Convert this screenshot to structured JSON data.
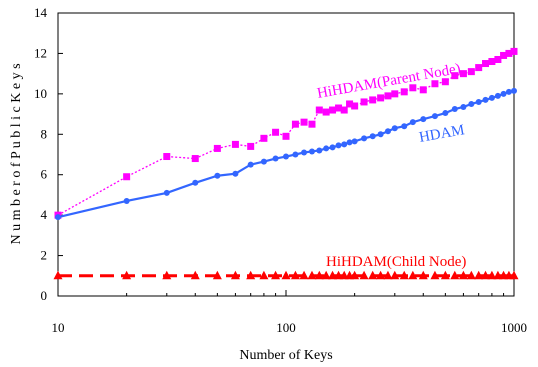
{
  "chart_data": {
    "type": "line",
    "xlabel": "Number of Keys",
    "ylabel": "N u m b e r  o f  P u b l i c  K e y s",
    "x_scale": "log",
    "xlim": [
      10,
      1000
    ],
    "ylim": [
      0,
      14
    ],
    "x_ticks": [
      "10",
      "100",
      "1000"
    ],
    "y_ticks": [
      "0",
      "2",
      "4",
      "6",
      "8",
      "10",
      "12",
      "14"
    ],
    "grid": false,
    "series": [
      {
        "name": "HiHDAM(Parent Node)",
        "color": "#FF00FF",
        "marker": "square",
        "line": "dotted",
        "points": [
          [
            10,
            4.0
          ],
          [
            20,
            5.9
          ],
          [
            30,
            6.9
          ],
          [
            40,
            6.8
          ],
          [
            50,
            7.3
          ],
          [
            60,
            7.5
          ],
          [
            70,
            7.4
          ],
          [
            80,
            7.8
          ],
          [
            90,
            8.1
          ],
          [
            100,
            7.9
          ],
          [
            110,
            8.5
          ],
          [
            120,
            8.6
          ],
          [
            130,
            8.5
          ],
          [
            140,
            9.2
          ],
          [
            150,
            9.1
          ],
          [
            160,
            9.2
          ],
          [
            170,
            9.3
          ],
          [
            180,
            9.2
          ],
          [
            190,
            9.5
          ],
          [
            200,
            9.4
          ],
          [
            220,
            9.6
          ],
          [
            240,
            9.7
          ],
          [
            260,
            9.8
          ],
          [
            280,
            9.9
          ],
          [
            300,
            10.0
          ],
          [
            330,
            10.1
          ],
          [
            360,
            10.3
          ],
          [
            400,
            10.2
          ],
          [
            450,
            10.5
          ],
          [
            500,
            10.6
          ],
          [
            550,
            10.9
          ],
          [
            600,
            11.0
          ],
          [
            650,
            11.1
          ],
          [
            700,
            11.3
          ],
          [
            750,
            11.5
          ],
          [
            800,
            11.6
          ],
          [
            850,
            11.7
          ],
          [
            900,
            11.9
          ],
          [
            950,
            12.0
          ],
          [
            1000,
            12.1
          ]
        ]
      },
      {
        "name": "HDAM",
        "color": "#3366FF",
        "marker": "circle",
        "line": "solid",
        "points": [
          [
            10,
            3.9
          ],
          [
            20,
            4.7
          ],
          [
            30,
            5.1
          ],
          [
            40,
            5.6
          ],
          [
            50,
            5.95
          ],
          [
            60,
            6.05
          ],
          [
            70,
            6.5
          ],
          [
            80,
            6.65
          ],
          [
            90,
            6.8
          ],
          [
            100,
            6.9
          ],
          [
            110,
            7.0
          ],
          [
            120,
            7.1
          ],
          [
            130,
            7.15
          ],
          [
            140,
            7.2
          ],
          [
            150,
            7.3
          ],
          [
            160,
            7.35
          ],
          [
            170,
            7.45
          ],
          [
            180,
            7.5
          ],
          [
            190,
            7.6
          ],
          [
            200,
            7.65
          ],
          [
            220,
            7.8
          ],
          [
            240,
            7.9
          ],
          [
            260,
            8.0
          ],
          [
            280,
            8.15
          ],
          [
            300,
            8.3
          ],
          [
            330,
            8.4
          ],
          [
            360,
            8.6
          ],
          [
            400,
            8.75
          ],
          [
            450,
            8.9
          ],
          [
            500,
            9.05
          ],
          [
            550,
            9.25
          ],
          [
            600,
            9.35
          ],
          [
            650,
            9.5
          ],
          [
            700,
            9.6
          ],
          [
            750,
            9.7
          ],
          [
            800,
            9.8
          ],
          [
            850,
            9.9
          ],
          [
            900,
            10.0
          ],
          [
            950,
            10.1
          ],
          [
            1000,
            10.15
          ]
        ]
      },
      {
        "name": "HiHDAM(Child Node)",
        "color": "#FF0000",
        "marker": "triangle",
        "line": "dashed",
        "points": [
          [
            10,
            1
          ],
          [
            20,
            1
          ],
          [
            30,
            1
          ],
          [
            40,
            1
          ],
          [
            50,
            1
          ],
          [
            60,
            1
          ],
          [
            70,
            1
          ],
          [
            80,
            1
          ],
          [
            90,
            1
          ],
          [
            100,
            1
          ],
          [
            110,
            1
          ],
          [
            120,
            1
          ],
          [
            130,
            1
          ],
          [
            140,
            1
          ],
          [
            150,
            1
          ],
          [
            160,
            1
          ],
          [
            170,
            1
          ],
          [
            180,
            1
          ],
          [
            190,
            1
          ],
          [
            200,
            1
          ],
          [
            220,
            1
          ],
          [
            240,
            1
          ],
          [
            260,
            1
          ],
          [
            280,
            1
          ],
          [
            300,
            1
          ],
          [
            330,
            1
          ],
          [
            360,
            1
          ],
          [
            400,
            1
          ],
          [
            450,
            1
          ],
          [
            500,
            1
          ],
          [
            550,
            1
          ],
          [
            600,
            1
          ],
          [
            650,
            1
          ],
          [
            700,
            1
          ],
          [
            750,
            1
          ],
          [
            800,
            1
          ],
          [
            850,
            1
          ],
          [
            900,
            1
          ],
          [
            950,
            1
          ],
          [
            1000,
            1
          ]
        ]
      }
    ],
    "annotations": {
      "parent": "HiHDAM(Parent Node)",
      "hdam": "HDAM",
      "child": "HiHDAM(Child Node)"
    }
  }
}
